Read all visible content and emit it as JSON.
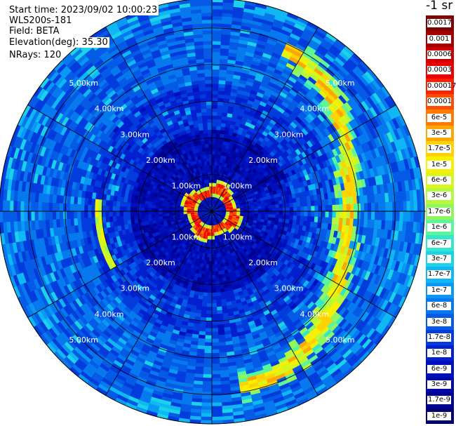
{
  "info": {
    "start_time": "Start time: 2023/09/02 10:00:23",
    "site": "WLS200s-181",
    "field": "Field: BETA",
    "elevation": "Elevation(deg): 35.30",
    "nrays": "NRays: 120"
  },
  "colorbar": {
    "unit_title": "-1 sr",
    "levels": [
      {
        "label": "0.0017",
        "color": "#7f0000"
      },
      {
        "label": "0.001",
        "color": "#a50000"
      },
      {
        "label": "0.0006",
        "color": "#cc0000"
      },
      {
        "label": "0.0003",
        "color": "#ee0000"
      },
      {
        "label": "0.00017",
        "color": "#ff2000"
      },
      {
        "label": "0.0001",
        "color": "#ff4d00"
      },
      {
        "label": "6e-5",
        "color": "#ff7a00"
      },
      {
        "label": "3e-5",
        "color": "#ffa600"
      },
      {
        "label": "1.7e-5",
        "color": "#ffd200"
      },
      {
        "label": "1e-5",
        "color": "#f7f000"
      },
      {
        "label": "6e-6",
        "color": "#d8f51c"
      },
      {
        "label": "3e-6",
        "color": "#b5f83d"
      },
      {
        "label": "1.7e-6",
        "color": "#8ff65f"
      },
      {
        "label": "1e-6",
        "color": "#5ef59a"
      },
      {
        "label": "6e-7",
        "color": "#33e8c8"
      },
      {
        "label": "3e-7",
        "color": "#1bd2e8"
      },
      {
        "label": "1.7e-7",
        "color": "#0fb8f5"
      },
      {
        "label": "1e-7",
        "color": "#0a98f5"
      },
      {
        "label": "6e-8",
        "color": "#0779ef"
      },
      {
        "label": "3e-8",
        "color": "#055ae6"
      },
      {
        "label": "1.7e-8",
        "color": "#033cdc"
      },
      {
        "label": "1e-8",
        "color": "#0220cf"
      },
      {
        "label": "6e-9",
        "color": "#0010bd"
      },
      {
        "label": "3e-9",
        "color": "#0008a8"
      },
      {
        "label": "1.7e-9",
        "color": "#000390"
      },
      {
        "label": "1e-9",
        "color": "#000070"
      }
    ]
  },
  "chart_data": {
    "type": "heatmap",
    "projection": "polar (plan position indicator)",
    "field": "BETA",
    "range_ring_unit": "km",
    "range_rings_km": [
      1,
      2,
      3,
      4,
      5
    ],
    "ring_labels": [
      "1.00km",
      "2.00km",
      "3.00km",
      "4.00km",
      "5.00km"
    ],
    "max_range_km": 5.8,
    "spoke_angles_deg": [
      0,
      30,
      60,
      90,
      120,
      150,
      180,
      210,
      240,
      270,
      300,
      330
    ],
    "background_color": "#1f6fe6",
    "features": [
      {
        "description": "strong return ring",
        "range_km": [
          0.3,
          0.95
        ],
        "az_deg": [
          0,
          360
        ],
        "level": "3e-5 to 0.0003"
      },
      {
        "description": "arc",
        "range_km": [
          3.5,
          5.0
        ],
        "az_deg": [
          20,
          170
        ],
        "level": "6e-6 to 6e-5"
      },
      {
        "description": "arc",
        "range_km": [
          3.0,
          3.2
        ],
        "az_deg": [
          245,
          275
        ],
        "level": "6e-6 to 3e-5"
      }
    ]
  }
}
